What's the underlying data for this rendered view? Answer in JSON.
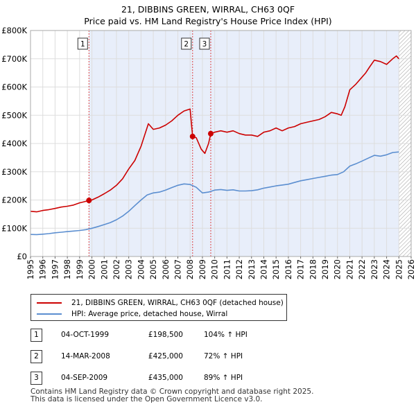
{
  "title_line1": "21, DIBBINS GREEN, WIRRAL, CH63 0QF",
  "title_line2": "Price paid vs. HM Land Registry's House Price Index (HPI)",
  "colors": {
    "property_line": "#cc0000",
    "hpi_line": "#5b8ed0",
    "shade": "#e8eefa",
    "marker_line": "#dd4444",
    "hatch": "#999999"
  },
  "chart_data": {
    "type": "line",
    "xlim": [
      1995,
      2026
    ],
    "ylim": [
      0,
      800000
    ],
    "y_ticks": [
      0,
      100000,
      200000,
      300000,
      400000,
      500000,
      600000,
      700000,
      800000
    ],
    "y_tick_labels": [
      "£0",
      "£100K",
      "£200K",
      "£300K",
      "£400K",
      "£500K",
      "£600K",
      "£700K",
      "£800K"
    ],
    "x_ticks": [
      1995,
      1996,
      1997,
      1998,
      1999,
      2000,
      2001,
      2002,
      2003,
      2004,
      2005,
      2006,
      2007,
      2008,
      2009,
      2010,
      2011,
      2012,
      2013,
      2014,
      2015,
      2016,
      2017,
      2018,
      2019,
      2020,
      2021,
      2022,
      2023,
      2024,
      2025,
      2026
    ],
    "x_tick_labels": [
      "1995",
      "1996",
      "1997",
      "1998",
      "1999",
      "2000",
      "2001",
      "2002",
      "2003",
      "2004",
      "2005",
      "2006",
      "2007",
      "2008",
      "2009",
      "2010",
      "2011",
      "2012",
      "2013",
      "2014",
      "2015",
      "2016",
      "2017",
      "2018",
      "2019",
      "2020",
      "2021",
      "2022",
      "2023",
      "2024",
      "2025",
      "2026"
    ],
    "shaded_from": 1999.76,
    "hatch_from": 2025.0,
    "series": [
      {
        "name": "21, DIBBINS GREEN, WIRRAL, CH63 0QF (detached house)",
        "x": [
          1995.0,
          1995.5,
          1996.0,
          1996.5,
          1997.0,
          1997.5,
          1998.0,
          1998.5,
          1999.0,
          1999.5,
          1999.76,
          2000.0,
          2000.5,
          2001.0,
          2001.5,
          2002.0,
          2002.5,
          2003.0,
          2003.5,
          2004.0,
          2004.3,
          2004.6,
          2005.0,
          2005.5,
          2006.0,
          2006.5,
          2007.0,
          2007.5,
          2008.0,
          2008.2,
          2008.5,
          2008.9,
          2009.2,
          2009.5,
          2009.68,
          2010.0,
          2010.5,
          2011.0,
          2011.5,
          2012.0,
          2012.5,
          2013.0,
          2013.5,
          2014.0,
          2014.5,
          2015.0,
          2015.5,
          2016.0,
          2016.5,
          2017.0,
          2017.5,
          2018.0,
          2018.5,
          2019.0,
          2019.5,
          2020.0,
          2020.3,
          2020.6,
          2021.0,
          2021.5,
          2022.0,
          2022.3,
          2022.6,
          2023.0,
          2023.5,
          2024.0,
          2024.5,
          2024.8,
          2025.0
        ],
        "values": [
          160000,
          158000,
          163000,
          166000,
          170000,
          175000,
          178000,
          182000,
          190000,
          195000,
          198500,
          200000,
          210000,
          222000,
          235000,
          252000,
          275000,
          310000,
          340000,
          390000,
          430000,
          470000,
          450000,
          455000,
          465000,
          480000,
          500000,
          515000,
          522000,
          425000,
          420000,
          380000,
          365000,
          400000,
          435000,
          440000,
          445000,
          440000,
          445000,
          435000,
          430000,
          430000,
          425000,
          440000,
          445000,
          455000,
          445000,
          455000,
          460000,
          470000,
          475000,
          480000,
          485000,
          495000,
          510000,
          505000,
          500000,
          530000,
          590000,
          610000,
          635000,
          650000,
          670000,
          695000,
          690000,
          680000,
          700000,
          710000,
          700000
        ]
      },
      {
        "name": "HPI: Average price, detached house, Wirral",
        "x": [
          1995.0,
          1995.5,
          1996.0,
          1996.5,
          1997.0,
          1997.5,
          1998.0,
          1998.5,
          1999.0,
          1999.5,
          2000.0,
          2000.5,
          2001.0,
          2001.5,
          2002.0,
          2002.5,
          2003.0,
          2003.5,
          2004.0,
          2004.5,
          2005.0,
          2005.5,
          2006.0,
          2006.5,
          2007.0,
          2007.5,
          2008.0,
          2008.5,
          2009.0,
          2009.5,
          2010.0,
          2010.5,
          2011.0,
          2011.5,
          2012.0,
          2012.5,
          2013.0,
          2013.5,
          2014.0,
          2014.5,
          2015.0,
          2015.5,
          2016.0,
          2016.5,
          2017.0,
          2017.5,
          2018.0,
          2018.5,
          2019.0,
          2019.5,
          2020.0,
          2020.5,
          2021.0,
          2021.5,
          2022.0,
          2022.5,
          2023.0,
          2023.5,
          2024.0,
          2024.5,
          2025.0
        ],
        "values": [
          78000,
          77500,
          79000,
          81000,
          84000,
          86000,
          88000,
          90000,
          92000,
          95000,
          100000,
          106000,
          113000,
          120000,
          130000,
          143000,
          160000,
          180000,
          200000,
          218000,
          225000,
          228000,
          235000,
          244000,
          252000,
          257000,
          255000,
          245000,
          225000,
          228000,
          235000,
          237000,
          234000,
          236000,
          232000,
          232000,
          233000,
          236000,
          242000,
          246000,
          250000,
          253000,
          256000,
          262000,
          268000,
          272000,
          276000,
          280000,
          284000,
          288000,
          290000,
          300000,
          320000,
          328000,
          338000,
          348000,
          358000,
          355000,
          360000,
          368000,
          370000
        ]
      }
    ],
    "sales": [
      {
        "label": "1",
        "x": 1999.76,
        "value": 198500
      },
      {
        "label": "2",
        "x": 2008.2,
        "value": 425000
      },
      {
        "label": "3",
        "x": 2009.68,
        "value": 435000
      }
    ]
  },
  "legend": {
    "property": "21, DIBBINS GREEN, WIRRAL, CH63 0QF (detached house)",
    "hpi": "HPI: Average price, detached house, Wirral"
  },
  "transactions": [
    {
      "num": "1",
      "date": "04-OCT-1999",
      "price": "£198,500",
      "hpi": "104% ↑ HPI"
    },
    {
      "num": "2",
      "date": "14-MAR-2008",
      "price": "£425,000",
      "hpi": "72% ↑ HPI"
    },
    {
      "num": "3",
      "date": "04-SEP-2009",
      "price": "£435,000",
      "hpi": "89% ↑ HPI"
    }
  ],
  "footer": {
    "line1": "Contains HM Land Registry data © Crown copyright and database right 2025.",
    "line2": "This data is licensed under the Open Government Licence v3.0."
  }
}
